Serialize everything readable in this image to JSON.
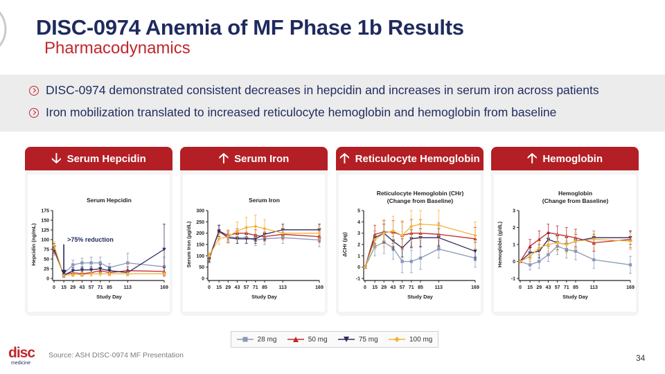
{
  "header": {
    "title": "DISC-0974 Anemia of MF Phase 1b Results",
    "subtitle": "Pharmacodynamics"
  },
  "bullets": [
    "DISC-0974 demonstrated consistent decreases in hepcidin and increases in serum iron across patients",
    "Iron mobilization translated to increased reticulocyte hemoglobin and hemoglobin from baseline"
  ],
  "panels": [
    {
      "label": "Serum Hepcidin",
      "direction": "down"
    },
    {
      "label": "Serum Iron",
      "direction": "up"
    },
    {
      "label": "Reticulocyte Hemoglobin",
      "direction": "up"
    },
    {
      "label": "Hemoglobin",
      "direction": "up"
    }
  ],
  "footer": {
    "source": "Source: ASH DISC-0974 MF Presentation",
    "page": "34",
    "logo": "disc",
    "logo_sub": "medicine"
  },
  "colors": {
    "brand_navy": "#1f2a5e",
    "brand_red": "#c0272d",
    "header_red": "#b31f24",
    "s28": "#8a98b6",
    "s50": "#c0272d",
    "s75": "#2f2a60",
    "s100": "#f2b33d"
  },
  "chart_data": [
    {
      "type": "line",
      "title": [
        "Serum Hepcidin"
      ],
      "xlabel": "Study Day",
      "ylabel": "Hepcidin (ng/mL)",
      "x": [
        0,
        15,
        29,
        43,
        57,
        71,
        85,
        113,
        169
      ],
      "xticks": [
        "0",
        "15",
        "29",
        "43",
        "57",
        "71",
        "85",
        "113",
        "169"
      ],
      "ylim": [
        0,
        175
      ],
      "yticks": [
        0,
        25,
        50,
        75,
        100,
        125,
        150,
        175
      ],
      "annotation": ">75% reduction",
      "series": [
        {
          "name": "28 mg",
          "values": [
            70,
            12,
            35,
            40,
            40,
            40,
            28,
            40,
            30
          ],
          "err": [
            10,
            5,
            12,
            12,
            15,
            15,
            10,
            25,
            25
          ]
        },
        {
          "name": "50 mg",
          "values": [
            75,
            10,
            15,
            12,
            15,
            20,
            15,
            20,
            18
          ],
          "err": [
            10,
            5,
            8,
            6,
            8,
            8,
            6,
            10,
            10
          ]
        },
        {
          "name": "75 mg",
          "values": [
            80,
            8,
            20,
            22,
            22,
            25,
            20,
            15,
            75
          ],
          "err": [
            10,
            5,
            8,
            8,
            8,
            10,
            8,
            8,
            65
          ]
        },
        {
          "name": "100 mg",
          "values": [
            85,
            8,
            10,
            10,
            12,
            12,
            12,
            12,
            12
          ],
          "err": [
            10,
            4,
            5,
            5,
            5,
            5,
            5,
            5,
            5
          ]
        }
      ]
    },
    {
      "type": "line",
      "title": [
        "Serum Iron"
      ],
      "xlabel": "Study Day",
      "ylabel": "Serum Iron (µg/dL)",
      "x": [
        0,
        15,
        29,
        43,
        57,
        71,
        85,
        113,
        169
      ],
      "xticks": [
        "0",
        "15",
        "29",
        "43",
        "57",
        "71",
        "85",
        "113",
        "169"
      ],
      "ylim": [
        0,
        300
      ],
      "yticks": [
        0,
        50,
        100,
        150,
        200,
        250,
        300
      ],
      "series": [
        {
          "name": "28 mg",
          "values": [
            95,
            205,
            185,
            180,
            180,
            170,
            175,
            180,
            170
          ],
          "err": [
            15,
            30,
            25,
            25,
            25,
            25,
            25,
            25,
            30
          ]
        },
        {
          "name": "50 mg",
          "values": [
            90,
            210,
            190,
            200,
            200,
            190,
            185,
            195,
            185
          ],
          "err": [
            15,
            25,
            20,
            20,
            25,
            25,
            20,
            20,
            25
          ]
        },
        {
          "name": "75 mg",
          "values": [
            85,
            210,
            180,
            175,
            175,
            175,
            195,
            215,
            215
          ],
          "err": [
            15,
            25,
            20,
            20,
            20,
            20,
            25,
            25,
            25
          ]
        },
        {
          "name": "100 mg",
          "values": [
            100,
            175,
            185,
            210,
            225,
            230,
            220,
            200,
            200
          ],
          "err": [
            15,
            25,
            30,
            40,
            45,
            50,
            40,
            30,
            30
          ]
        }
      ]
    },
    {
      "type": "line",
      "title": [
        "Reticulocyte Hemoglobin (CHr)",
        "(Change from Baseline)"
      ],
      "xlabel": "Study Day",
      "ylabel": "ΔCHr (pg)",
      "x": [
        0,
        15,
        29,
        43,
        57,
        71,
        85,
        113,
        169
      ],
      "xticks": [
        "0",
        "15",
        "29",
        "43",
        "57",
        "71",
        "85",
        "113",
        "169"
      ],
      "ylim": [
        -1,
        5
      ],
      "yticks": [
        -1,
        0,
        1,
        2,
        3,
        4,
        5
      ],
      "series": [
        {
          "name": "28 mg",
          "values": [
            0,
            1.8,
            2.2,
            1.7,
            0.5,
            0.5,
            0.8,
            1.6,
            0.8
          ],
          "err": [
            0,
            0.8,
            1.0,
            1.0,
            1.0,
            1.0,
            1.0,
            0.8,
            0.8
          ]
        },
        {
          "name": "50 mg",
          "values": [
            0,
            2.9,
            3.1,
            3.1,
            2.8,
            3.0,
            3.0,
            2.9,
            2.5
          ],
          "err": [
            0,
            0.8,
            1.0,
            1.0,
            1.2,
            1.2,
            1.2,
            1.0,
            1.0
          ]
        },
        {
          "name": "75 mg",
          "values": [
            0,
            2.6,
            3.0,
            2.3,
            1.7,
            2.5,
            2.6,
            2.6,
            1.4
          ],
          "err": [
            0,
            0.6,
            0.8,
            0.8,
            0.8,
            0.8,
            0.8,
            0.8,
            0.8
          ]
        },
        {
          "name": "100 mg",
          "values": [
            0,
            2.4,
            3.0,
            3.2,
            2.8,
            3.6,
            3.8,
            3.7,
            2.8
          ],
          "err": [
            0,
            0.8,
            1.2,
            1.3,
            1.3,
            1.4,
            1.4,
            1.3,
            1.2
          ]
        }
      ]
    },
    {
      "type": "line",
      "title": [
        "Hemoglobin",
        "(Change from Baseline)"
      ],
      "xlabel": "Study Day",
      "ylabel": "Hemoglobin (g/dL)",
      "x": [
        0,
        15,
        29,
        43,
        57,
        71,
        85,
        113,
        169
      ],
      "xticks": [
        "0",
        "15",
        "29",
        "43",
        "57",
        "71",
        "85",
        "113",
        "169"
      ],
      "ylim": [
        -1,
        3
      ],
      "yticks": [
        -1,
        0,
        1,
        2,
        3
      ],
      "series": [
        {
          "name": "28 mg",
          "values": [
            0,
            -0.2,
            0.0,
            0.4,
            0.9,
            0.7,
            0.6,
            0.1,
            -0.2
          ],
          "err": [
            0,
            0.3,
            0.4,
            0.4,
            0.5,
            0.5,
            0.5,
            0.5,
            0.5
          ]
        },
        {
          "name": "50 mg",
          "values": [
            0,
            0.9,
            1.3,
            1.7,
            1.6,
            1.5,
            1.4,
            1.1,
            1.3
          ],
          "err": [
            0,
            0.4,
            0.5,
            0.5,
            0.5,
            0.5,
            0.5,
            0.5,
            0.5
          ]
        },
        {
          "name": "75 mg",
          "values": [
            0,
            0.5,
            0.6,
            1.3,
            1.1,
            1.0,
            1.2,
            1.4,
            1.4
          ],
          "err": [
            0,
            0.3,
            0.4,
            0.4,
            0.4,
            0.4,
            0.4,
            0.4,
            0.4
          ]
        },
        {
          "name": "100 mg",
          "values": [
            0,
            0.3,
            0.8,
            1.0,
            1.1,
            1.0,
            1.2,
            1.3,
            1.2
          ],
          "err": [
            0,
            0.3,
            0.4,
            0.4,
            0.5,
            0.5,
            0.5,
            0.5,
            0.5
          ]
        }
      ]
    }
  ],
  "legend": [
    {
      "name": "28 mg",
      "marker": "square",
      "color": "#8a98b6"
    },
    {
      "name": "50 mg",
      "marker": "triangle-up",
      "color": "#c0272d"
    },
    {
      "name": "75 mg",
      "marker": "triangle-down",
      "color": "#2f2a60"
    },
    {
      "name": "100 mg",
      "marker": "diamond",
      "color": "#f2b33d"
    }
  ]
}
